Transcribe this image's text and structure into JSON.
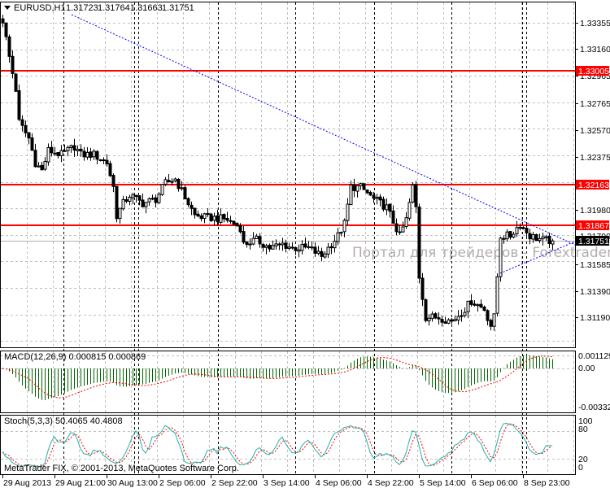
{
  "header": {
    "symbol": "EURUSD,H1",
    "open": "1.31723",
    "high": "1.31764",
    "low": "1.31663",
    "close": "1.31751",
    "menu_icon": "triangle-down-icon"
  },
  "price_axis": {
    "labels": [
      "1.33355",
      "1.33160",
      "1.32965",
      "1.32765",
      "1.32570",
      "1.32375",
      "1.31980",
      "1.31790",
      "1.31585",
      "1.31390",
      "1.31190"
    ],
    "current_price": "1.31751",
    "current_price_color": "#000000"
  },
  "levels": [
    {
      "label": "1.33005",
      "price": 1.33005,
      "color": "#ff0000"
    },
    {
      "label": "1.32163",
      "price": 1.32163,
      "color": "#ff0000"
    },
    {
      "label": "1.31867",
      "price": 1.31867,
      "color": "#ff0000"
    }
  ],
  "trendlines_color": "#0000ff",
  "watermark": "Портал для трейдеров - Forextrader.ru",
  "chart_data": {
    "type": "candlestick",
    "timeframe": "H1",
    "price_path": [
      [
        0,
        1.33373
      ],
      [
        2,
        1.33104
      ],
      [
        4,
        1.32865
      ],
      [
        5,
        1.32625
      ],
      [
        8,
        1.32506
      ],
      [
        10,
        1.32326
      ],
      [
        12,
        1.32267
      ],
      [
        14,
        1.32416
      ],
      [
        18,
        1.32386
      ],
      [
        22,
        1.32446
      ],
      [
        24,
        1.32386
      ],
      [
        28,
        1.32386
      ],
      [
        32,
        1.32326
      ],
      [
        34,
        1.32147
      ],
      [
        35,
        1.31938
      ],
      [
        37,
        1.32027
      ],
      [
        39,
        1.32087
      ],
      [
        43,
        1.32027
      ],
      [
        47,
        1.32058
      ],
      [
        50,
        1.32177
      ],
      [
        53,
        1.32207
      ],
      [
        55,
        1.32117
      ],
      [
        59,
        1.31938
      ],
      [
        63,
        1.3192
      ],
      [
        65,
        1.3192
      ],
      [
        69,
        1.31908
      ],
      [
        73,
        1.31848
      ],
      [
        74,
        1.31728
      ],
      [
        78,
        1.31758
      ],
      [
        82,
        1.31699
      ],
      [
        86,
        1.31728
      ],
      [
        89,
        1.31699
      ],
      [
        94,
        1.31699
      ],
      [
        98,
        1.31639
      ],
      [
        100,
        1.31699
      ],
      [
        103,
        1.31788
      ],
      [
        105,
        1.31878
      ],
      [
        107,
        1.32147
      ],
      [
        110,
        1.32147
      ],
      [
        114,
        1.32058
      ],
      [
        118,
        1.31997
      ],
      [
        122,
        1.31788
      ],
      [
        124,
        1.31908
      ],
      [
        126,
        1.32147
      ],
      [
        127,
        1.31997
      ],
      [
        128,
        1.31489
      ],
      [
        130,
        1.3119
      ],
      [
        134,
        1.3119
      ],
      [
        138,
        1.3116
      ],
      [
        142,
        1.3125
      ],
      [
        144,
        1.3131
      ],
      [
        148,
        1.3125
      ],
      [
        150,
        1.3113
      ],
      [
        151,
        1.3119
      ],
      [
        152,
        1.31489
      ],
      [
        153,
        1.31788
      ],
      [
        156,
        1.31788
      ],
      [
        159,
        1.31878
      ],
      [
        162,
        1.31788
      ],
      [
        166,
        1.31758
      ],
      [
        169,
        1.31751
      ]
    ],
    "time_labels": [
      "29 Aug 2013",
      "29 Aug 21:00",
      "30 Aug 13:00",
      "2 Sep 06:00",
      "2 Sep 22:00",
      "3 Sep 14:00",
      "4 Sep 06:00",
      "4 Sep 22:00",
      "5 Sep 14:00",
      "6 Sep 06:00",
      "8 Sep 23:00"
    ],
    "bull_color": "#ffffff",
    "bear_color": "#000000"
  },
  "macd": {
    "title": "MACD(12,26,9) 0.000815 0.000869",
    "labels": [
      "0.001129",
      "0.00",
      "-0.003325"
    ],
    "histogram_color": "#006400",
    "signal_color": "#ff0000"
  },
  "stoch": {
    "title": "Stoch(5,3,3) 50.4065 40.4808",
    "labels": [
      "100",
      "80",
      "20",
      "0"
    ],
    "main_color": "#20b2aa",
    "signal_color": "#ff0000"
  },
  "copyright": "MetaTrader FIX, © 2001-2013, MetaQuotes Software Corp."
}
